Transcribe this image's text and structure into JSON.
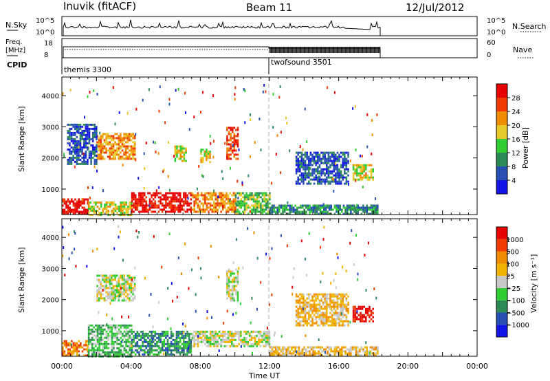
{
  "header": {
    "title": "Inuvik (fitACF)",
    "beam": "Beam 11",
    "date": "12/Jul/2012"
  },
  "nsky_panel": {
    "left_label": "N.Sky",
    "left_ticks": [
      "10^5",
      "10^0"
    ],
    "right_ticks": [
      "10^5",
      "10^0"
    ],
    "right_label": "N.Search"
  },
  "freq_panel": {
    "left_label_1": "Freq.",
    "left_label_2": "[MHz]",
    "left_ticks": [
      "18",
      "8"
    ],
    "right_ticks": [
      "60",
      "0"
    ],
    "right_label": "Nave"
  },
  "cpid": {
    "label": "CPID",
    "modes": [
      {
        "name": "themis 3300",
        "start_hour": 0
      },
      {
        "name": "twofsound 3501",
        "start_hour": 12
      }
    ]
  },
  "chart_data": [
    {
      "type": "heatmap",
      "name": "power",
      "ylabel": "Slant Range [km]",
      "xlabel": "Time UT",
      "xlim": [
        0,
        24
      ],
      "ylim": [
        180,
        4600
      ],
      "x_ticks": [
        "00:00",
        "04:00",
        "08:00",
        "12:00",
        "16:00",
        "20:00",
        "00:00"
      ],
      "y_ticks": [
        1000,
        2000,
        3000,
        4000
      ],
      "colorbar": {
        "label": "Power [dB]",
        "ticks": [
          "4",
          "8",
          "12",
          "16",
          "20",
          "24",
          "28"
        ],
        "colors": [
          "#1414e6",
          "#2850b4",
          "#2e8b57",
          "#32cd32",
          "#e6c828",
          "#f08c00",
          "#f03c00",
          "#e60000"
        ]
      },
      "regions": [
        {
          "t0": 0.0,
          "t1": 1.5,
          "r0": 180,
          "r1": 700,
          "level": 7
        },
        {
          "t0": 1.5,
          "t1": 4.0,
          "r0": 180,
          "r1": 600,
          "level": 4
        },
        {
          "t0": 4.0,
          "t1": 7.5,
          "r0": 250,
          "r1": 900,
          "level": 7
        },
        {
          "t0": 7.5,
          "t1": 10.0,
          "r0": 250,
          "r1": 900,
          "level": 5
        },
        {
          "t0": 10.0,
          "t1": 12.0,
          "r0": 200,
          "r1": 900,
          "level": 3
        },
        {
          "t0": 12.0,
          "t1": 18.2,
          "r0": 200,
          "r1": 500,
          "level": 2
        },
        {
          "t0": 2.0,
          "t1": 4.2,
          "r0": 2000,
          "r1": 2800,
          "level": 5
        },
        {
          "t0": 0.3,
          "t1": 2.0,
          "r0": 1800,
          "r1": 3100,
          "level": 1
        },
        {
          "t0": 6.5,
          "t1": 7.2,
          "r0": 1900,
          "r1": 2400,
          "level": 4
        },
        {
          "t0": 8.0,
          "t1": 8.6,
          "r0": 1900,
          "r1": 2300,
          "level": 4
        },
        {
          "t0": 9.5,
          "t1": 10.2,
          "r0": 2000,
          "r1": 3000,
          "level": 6
        },
        {
          "t0": 13.5,
          "t1": 16.5,
          "r0": 1200,
          "r1": 2200,
          "level": 1
        },
        {
          "t0": 16.8,
          "t1": 18.0,
          "r0": 1300,
          "r1": 1800,
          "level": 4
        }
      ]
    },
    {
      "type": "heatmap",
      "name": "velocity",
      "ylabel": "Slant Range [km]",
      "xlabel": "Time UT",
      "xlim": [
        0,
        24
      ],
      "ylim": [
        180,
        4600
      ],
      "x_ticks": [
        "00:00",
        "04:00",
        "08:00",
        "12:00",
        "16:00",
        "20:00",
        "00:00"
      ],
      "y_ticks": [
        1000,
        2000,
        3000,
        4000
      ],
      "colorbar": {
        "label": "Velocity [m s⁻¹]",
        "ticks": [
          "1000",
          "500",
          "100",
          "25",
          "−25",
          "−100",
          "−500",
          "−1000"
        ],
        "colors": [
          "#1414e6",
          "#2850b4",
          "#2e8b57",
          "#32cd32",
          "#c8c8c8",
          "#f0b400",
          "#f08c00",
          "#f03c00",
          "#e60000"
        ]
      },
      "regions": [
        {
          "t0": 0.0,
          "t1": 1.5,
          "r0": 180,
          "r1": 700,
          "level": 6
        },
        {
          "t0": 1.5,
          "t1": 4.0,
          "r0": 180,
          "r1": 1200,
          "level": 3
        },
        {
          "t0": 4.0,
          "t1": 7.5,
          "r0": 250,
          "r1": 1000,
          "level": 2
        },
        {
          "t0": 7.5,
          "t1": 12.0,
          "r0": 500,
          "r1": 1000,
          "level": 4
        },
        {
          "t0": 12.0,
          "t1": 18.2,
          "r0": 200,
          "r1": 500,
          "level": 5
        },
        {
          "t0": 2.0,
          "t1": 4.2,
          "r0": 2000,
          "r1": 2800,
          "level": 4
        },
        {
          "t0": 9.5,
          "t1": 10.2,
          "r0": 2000,
          "r1": 3000,
          "level": 4
        },
        {
          "t0": 13.5,
          "t1": 16.5,
          "r0": 1200,
          "r1": 2200,
          "level": 5
        },
        {
          "t0": 16.8,
          "t1": 18.0,
          "r0": 1300,
          "r1": 1800,
          "level": 8
        }
      ]
    }
  ],
  "x_axis": {
    "ticks": [
      "00:00",
      "04:00",
      "08:00",
      "12:00",
      "16:00",
      "20:00",
      "00:00"
    ],
    "label": "Time UT"
  }
}
